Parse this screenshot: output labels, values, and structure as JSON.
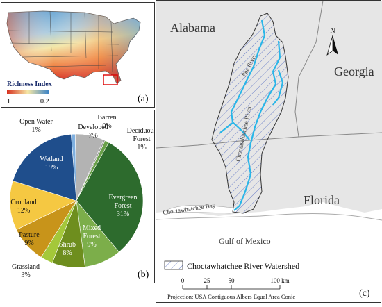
{
  "panel_a": {
    "legend_title": "Richness Index",
    "legend_min": "1",
    "legend_max": "0.2",
    "panel_label": "(a)",
    "colors": {
      "low": "#4a90c8",
      "mid": "#f2e6a0",
      "high": "#d7301f"
    }
  },
  "panel_b": {
    "panel_label": "(b)",
    "chart_data": {
      "type": "pie",
      "slices": [
        {
          "name": "Open Water",
          "pct_label": "1%",
          "value": 1,
          "color": "#7fb0e0"
        },
        {
          "name": "Developed",
          "pct_label": "7%",
          "value": 7,
          "color": "#b3b3b3"
        },
        {
          "name": "Barren",
          "pct_label": "0%",
          "value": 0.4,
          "color": "#9a9a9a"
        },
        {
          "name": "Deciduous Forest",
          "pct_label": "1%",
          "value": 1,
          "color": "#6aa04a"
        },
        {
          "name": "Evergreen Forest",
          "pct_label": "31%",
          "value": 31,
          "color": "#2d6b2d"
        },
        {
          "name": "Mixed Forest",
          "pct_label": "9%",
          "value": 9,
          "color": "#7cae4a"
        },
        {
          "name": "Shrub",
          "pct_label": "8%",
          "value": 8,
          "color": "#6e8e1e"
        },
        {
          "name": "Grassland",
          "pct_label": "3%",
          "value": 3,
          "color": "#a4c83a"
        },
        {
          "name": "Pasture",
          "pct_label": "9%",
          "value": 9,
          "color": "#c8941a"
        },
        {
          "name": "Cropland",
          "pct_label": "12%",
          "value": 12,
          "color": "#f5c842"
        },
        {
          "name": "Wetland",
          "pct_label": "19%",
          "value": 19,
          "color": "#1f4e8c"
        }
      ]
    }
  },
  "panel_c": {
    "panel_label": "(c)",
    "labels": {
      "alabama": "Alabama",
      "georgia": "Georgia",
      "florida": "Florida",
      "gulf": "Gulf of Mexico",
      "bay": "Choctawhatchee Bay",
      "pea_river": "Pea River",
      "choc_river": "Choctawhatchee River",
      "north": "N"
    },
    "legend": "Choctawhatchee River Watershed",
    "scalebar": {
      "ticks": [
        "0",
        "25",
        "50",
        "100 km"
      ]
    },
    "projection": "Projection: USA Contiguous Albers Equal Area Conic",
    "colors": {
      "land": "#e6e6e6",
      "sea": "#ffffff",
      "river": "#29b6e8",
      "hatch": "#6a7fc8"
    }
  }
}
